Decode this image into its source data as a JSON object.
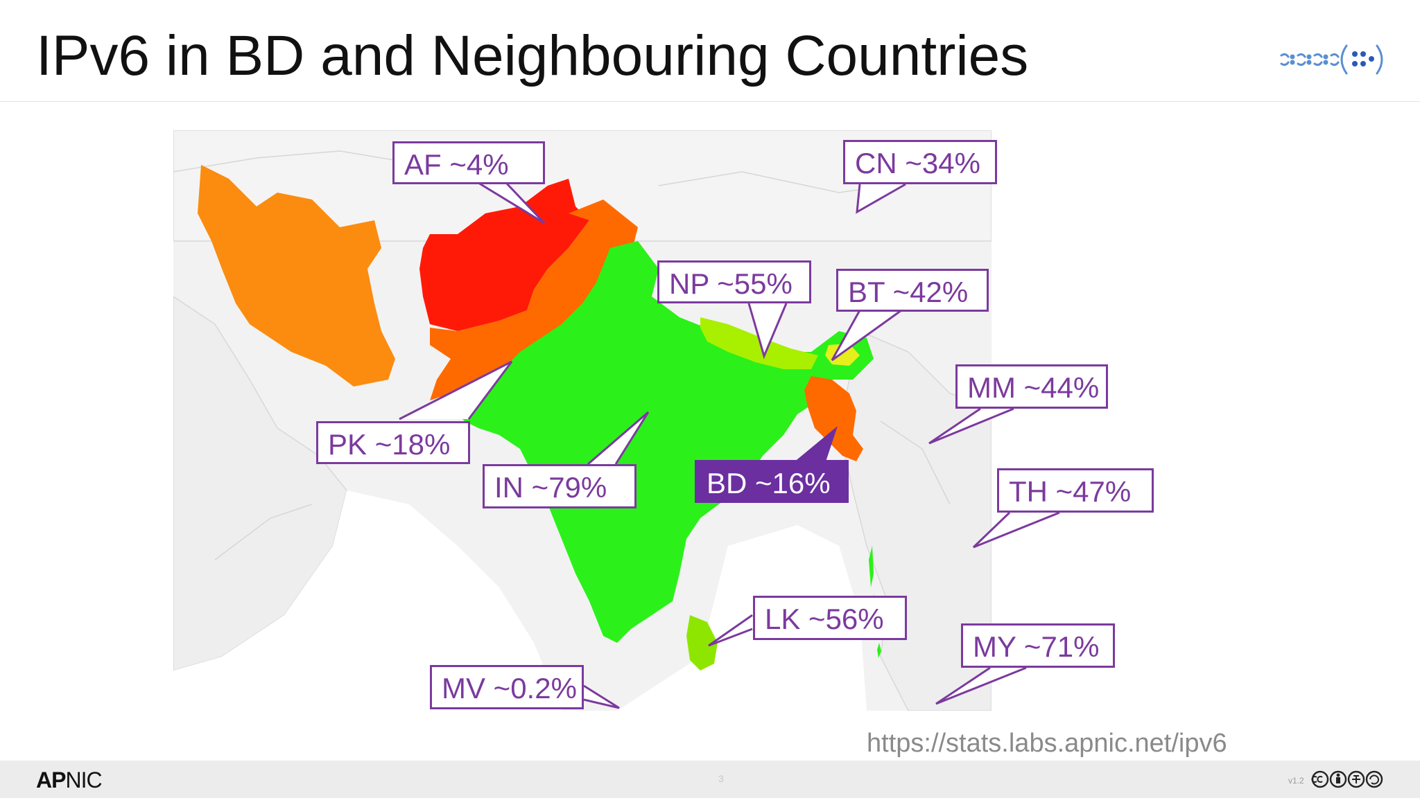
{
  "slide": {
    "title": "IPv6 in BD and Neighbouring Countries",
    "source_url": "https://stats.labs.apnic.net/ipv6",
    "page_number": "3",
    "version": "v1.2"
  },
  "footer": {
    "logo_bold": "AP",
    "logo_rest": "NIC"
  },
  "colors": {
    "callout_purple": "#7b3a9e",
    "highlight_purple": "#6b2fa0",
    "green_high": "#2cf01a",
    "yellow_green": "#a8f000",
    "yellow": "#e6ee1c",
    "orange": "#fb8c10",
    "dark_orange": "#ff6a00",
    "red": "#ff1a08",
    "background_land": "#efefef"
  },
  "callouts": [
    {
      "id": "af",
      "label": "AF ~4%",
      "highlight": false
    },
    {
      "id": "cn",
      "label": "CN ~34%",
      "highlight": false
    },
    {
      "id": "np",
      "label": "NP ~55%",
      "highlight": false
    },
    {
      "id": "bt",
      "label": "BT ~42%",
      "highlight": false
    },
    {
      "id": "mm",
      "label": "MM ~44%",
      "highlight": false
    },
    {
      "id": "pk",
      "label": "PK ~18%",
      "highlight": false
    },
    {
      "id": "in",
      "label": "IN ~79%",
      "highlight": false
    },
    {
      "id": "bd",
      "label": "BD ~16%",
      "highlight": true
    },
    {
      "id": "th",
      "label": "TH ~47%",
      "highlight": false
    },
    {
      "id": "lk",
      "label": "LK ~56%",
      "highlight": false
    },
    {
      "id": "my",
      "label": "MY ~71%",
      "highlight": false
    },
    {
      "id": "mv",
      "label": "MV ~0.2%",
      "highlight": false
    }
  ]
}
